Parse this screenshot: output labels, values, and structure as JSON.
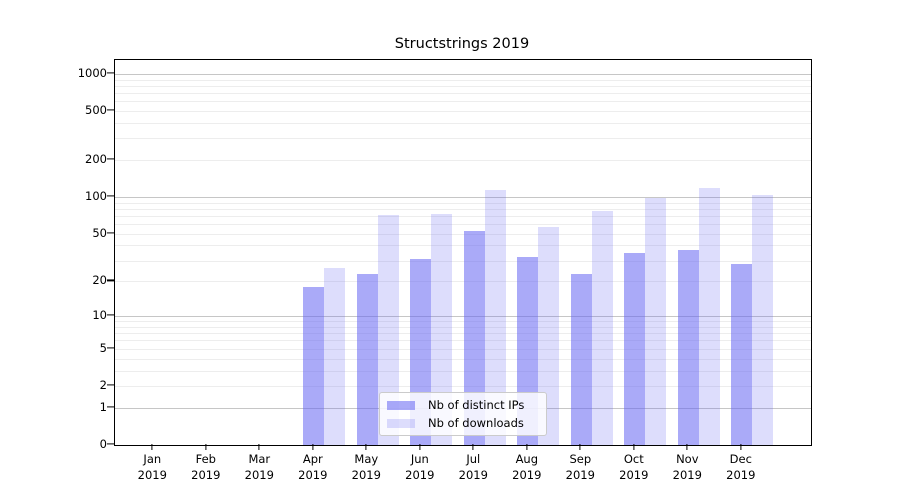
{
  "figure": {
    "background": "#ffffff"
  },
  "chart_data": {
    "type": "bar",
    "title": "Structstrings 2019",
    "x_year": "2019",
    "categories": [
      "Jan",
      "Feb",
      "Mar",
      "Apr",
      "May",
      "Jun",
      "Jul",
      "Aug",
      "Sep",
      "Oct",
      "Nov",
      "Dec"
    ],
    "series": [
      {
        "name": "Nb of distinct IPs",
        "base_color_rgb": "100,100,242",
        "opacity": 0.55,
        "fill_on_white": "#aaaaf7",
        "values": [
          0,
          0,
          0,
          18,
          23,
          31,
          53,
          32,
          23,
          35,
          37,
          28
        ]
      },
      {
        "name": "Nb of downloads",
        "base_color_rgb": "100,100,242",
        "opacity": 0.22,
        "fill_on_white": "#dcdcfa",
        "values": [
          0,
          0,
          0,
          26,
          72,
          73,
          115,
          57,
          77,
          99,
          119,
          104
        ]
      }
    ],
    "yscale": "log1p",
    "ylabel": "",
    "xlabel": "",
    "y_tick_values": [
      0,
      1,
      2,
      5,
      10,
      20,
      50,
      100,
      200,
      500,
      1000
    ],
    "y_major_gridlines": [
      1,
      10,
      100,
      1000
    ],
    "y_minor_gridlines": [
      2,
      3,
      4,
      5,
      6,
      7,
      8,
      9,
      20,
      30,
      40,
      50,
      60,
      70,
      80,
      90,
      200,
      300,
      400,
      500,
      600,
      700,
      800,
      900
    ],
    "ylim": [
      0,
      1320
    ],
    "grid": "horizontal, major + minor, behind translucent bars",
    "legend_position": "inside, lower center",
    "colors": {
      "major_grid": "#c6c6c6",
      "minor_grid": "#ededed",
      "spine": "#000000",
      "legend_border": "#cbcbcb"
    }
  }
}
